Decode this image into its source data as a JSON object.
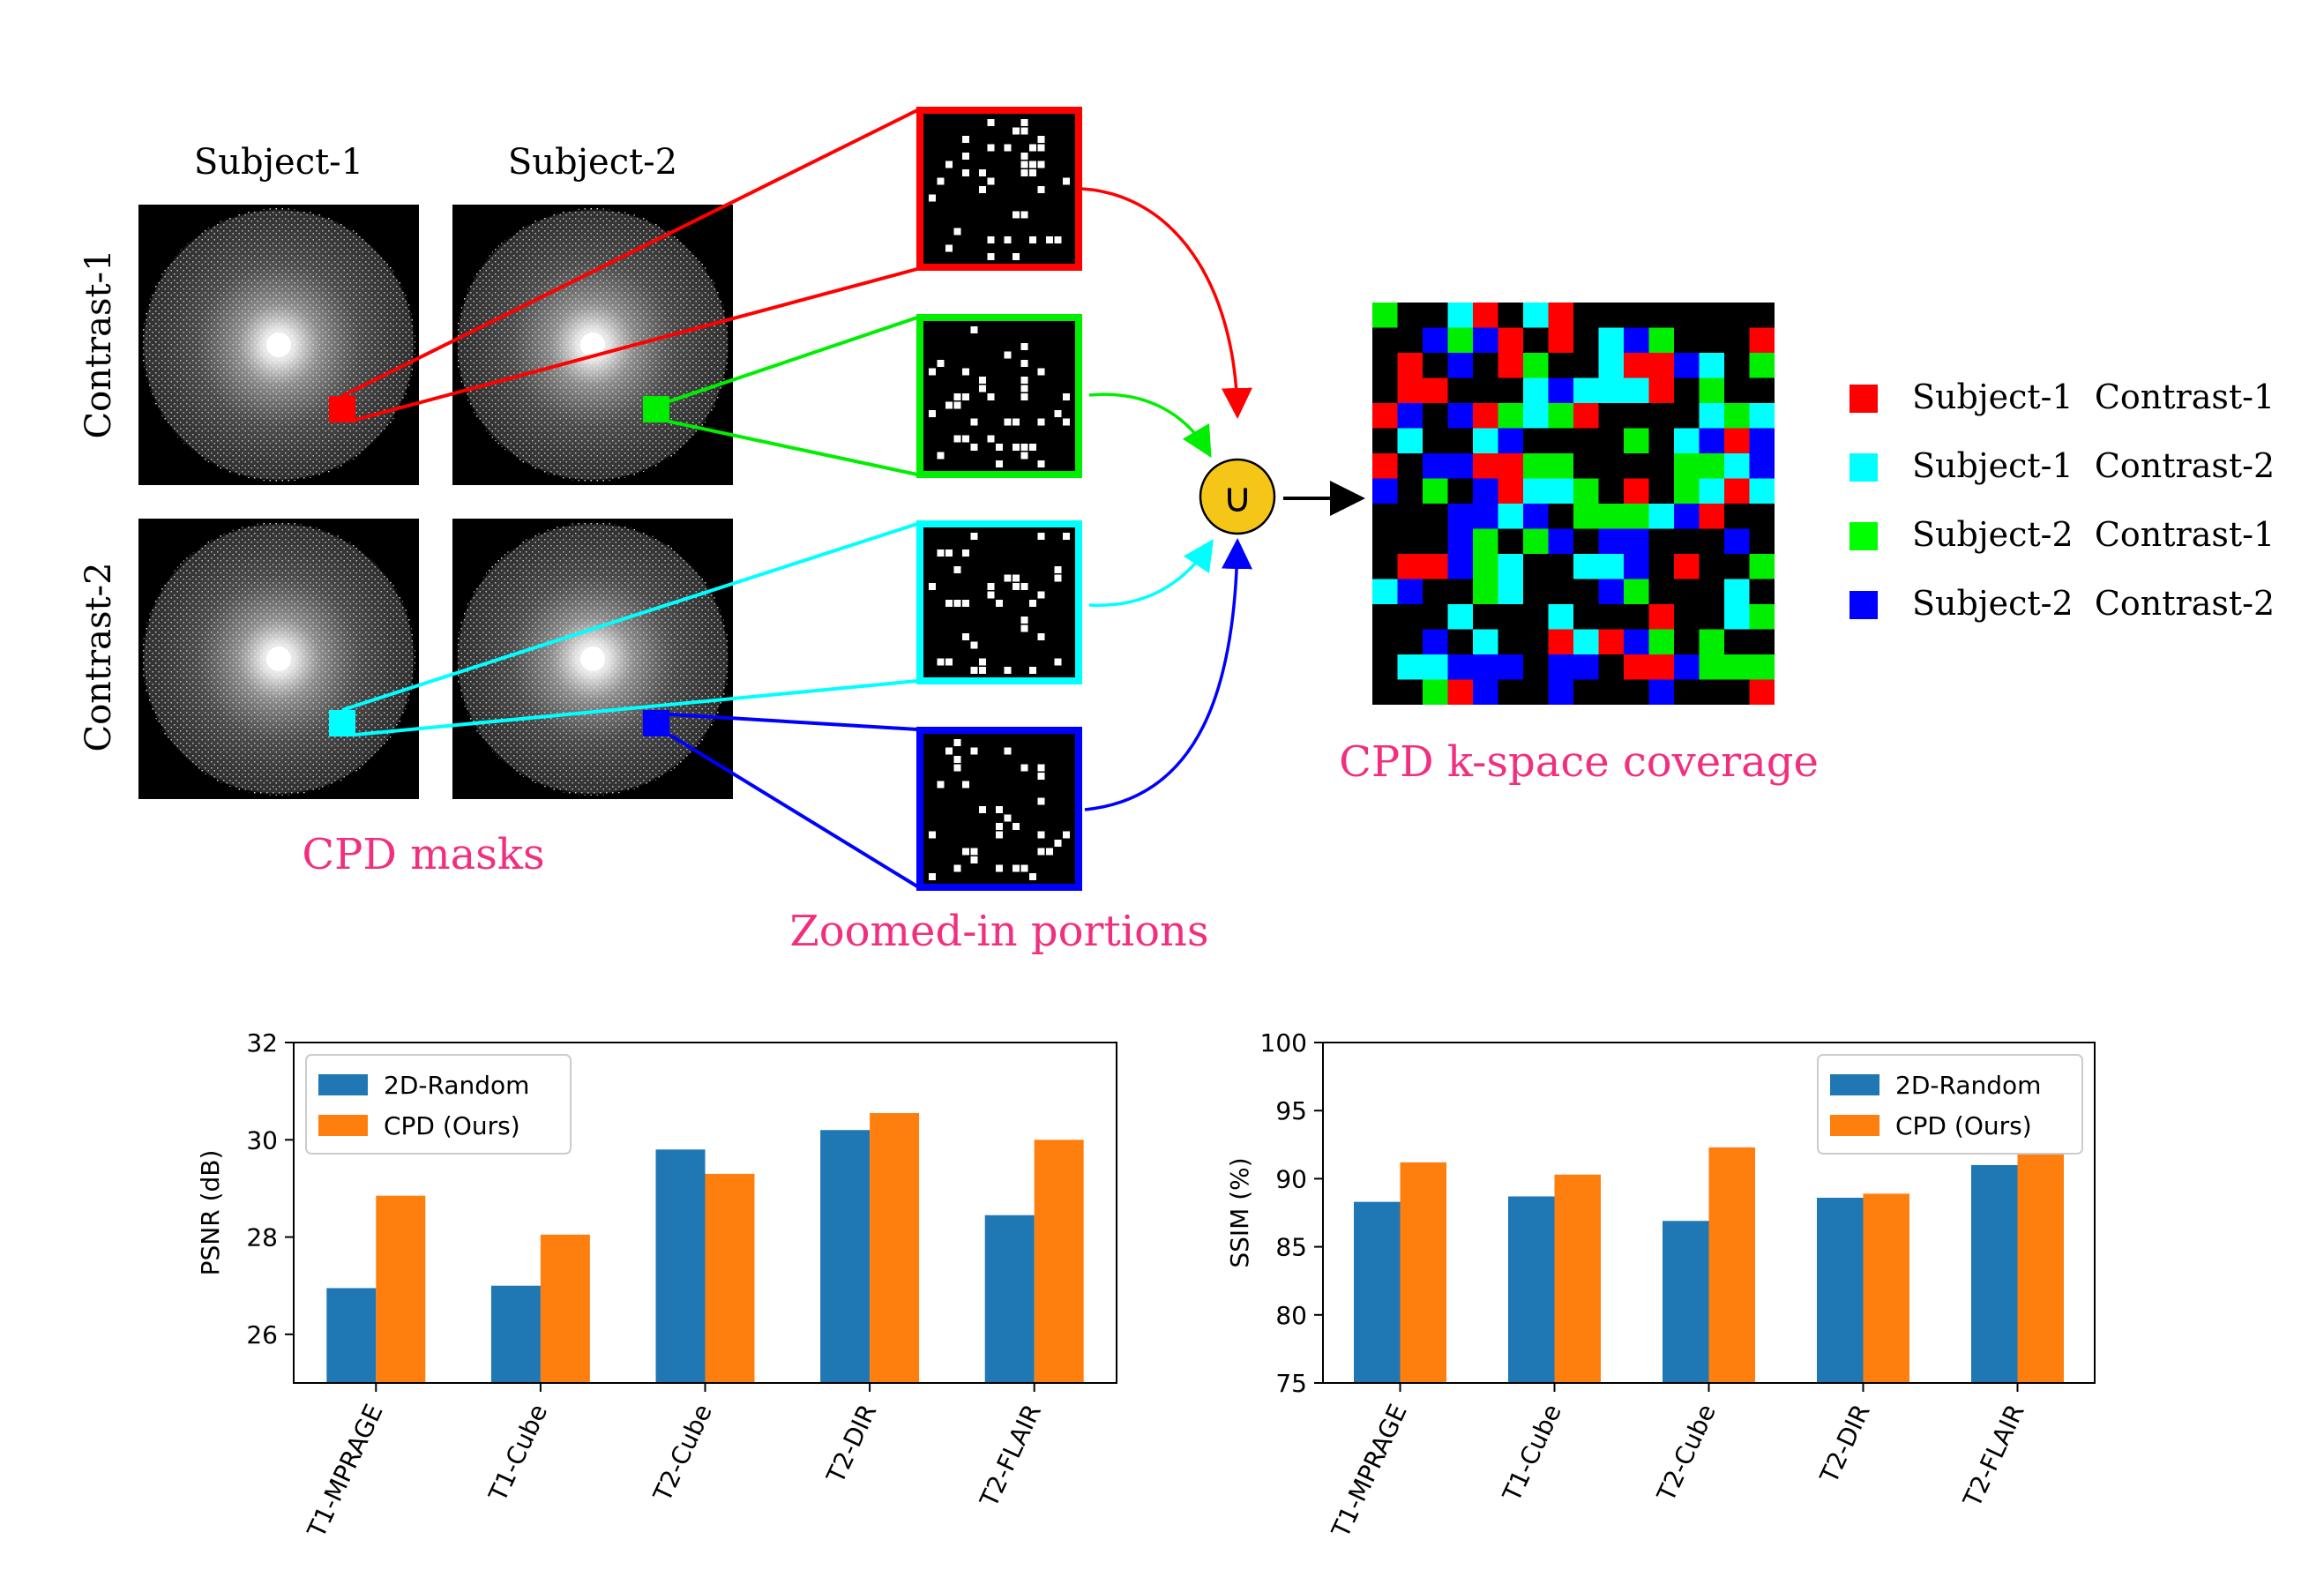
{
  "diagram": {
    "col_labels": [
      "Subject-1",
      "Subject-2"
    ],
    "row_labels": [
      "Contrast-1",
      "Contrast-2"
    ],
    "masks_caption": "CPD masks",
    "zoom_caption": "Zoomed-in portions",
    "union_symbol": "∪",
    "coverage_caption": "CPD k-space coverage",
    "legend": [
      {
        "label": "Subject-1  Contrast-1",
        "color": "#ff0000"
      },
      {
        "label": "Subject-1  Contrast-2",
        "color": "#00ffff"
      },
      {
        "label": "Subject-2  Contrast-1",
        "color": "#00ff00"
      },
      {
        "label": "Subject-2  Contrast-2",
        "color": "#0000ff"
      }
    ],
    "colors": {
      "caption": "#f0307f",
      "union_fill": "#f5c518",
      "red": "#ff0000",
      "green": "#00ee00",
      "cyan": "#00ffff",
      "blue": "#0000ff"
    }
  },
  "chart_data": [
    {
      "type": "bar",
      "categories": [
        "T1-MPRAGE",
        "T1-Cube",
        "T2-Cube",
        "T2-DIR",
        "T2-FLAIR"
      ],
      "series": [
        {
          "name": "2D-Random",
          "values": [
            26.95,
            27.0,
            29.8,
            30.2,
            28.45
          ],
          "color": "#1f77b4"
        },
        {
          "name": "CPD (Ours)",
          "values": [
            28.85,
            28.05,
            29.3,
            30.55,
            30.0
          ],
          "color": "#ff7f0e"
        }
      ],
      "ylabel": "PSNR (dB)",
      "ylim": [
        25,
        32
      ],
      "yticks": [
        26,
        28,
        30,
        32
      ],
      "legend_position": "top-left"
    },
    {
      "type": "bar",
      "categories": [
        "T1-MPRAGE",
        "T1-Cube",
        "T2-Cube",
        "T2-DIR",
        "T2-FLAIR"
      ],
      "series": [
        {
          "name": "2D-Random",
          "values": [
            88.3,
            88.7,
            86.9,
            88.6,
            91.0
          ],
          "color": "#1f77b4"
        },
        {
          "name": "CPD (Ours)",
          "values": [
            91.2,
            90.3,
            92.3,
            88.9,
            92.2
          ],
          "color": "#ff7f0e"
        }
      ],
      "ylabel": "SSIM (%)",
      "ylim": [
        75,
        100
      ],
      "yticks": [
        75,
        80,
        85,
        90,
        95,
        100
      ],
      "legend_position": "top-right"
    }
  ]
}
